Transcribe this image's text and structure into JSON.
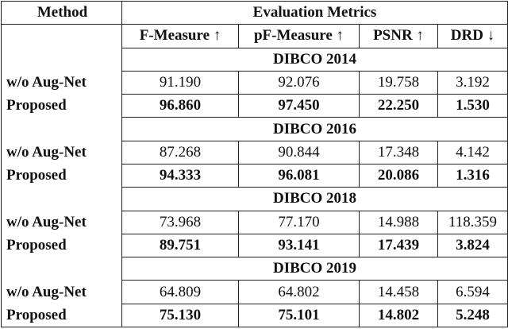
{
  "header": {
    "method": "Method",
    "metrics": "Evaluation Metrics"
  },
  "columns": [
    "F-Measure ↑",
    "pF-Measure ↑",
    "PSNR ↑",
    "DRD ↓"
  ],
  "sections": [
    {
      "title": "DIBCO 2014",
      "rows": [
        {
          "method": "w/o Aug-Net",
          "values": [
            "91.190",
            "92.076",
            "19.758",
            "3.192"
          ]
        },
        {
          "method": "Proposed",
          "values": [
            "96.860",
            "97.450",
            "22.250",
            "1.530"
          ]
        }
      ]
    },
    {
      "title": "DIBCO 2016",
      "rows": [
        {
          "method": "w/o Aug-Net",
          "values": [
            "87.268",
            "90.844",
            "17.348",
            "4.142"
          ]
        },
        {
          "method": "Proposed",
          "values": [
            "94.333",
            "96.081",
            "20.086",
            "1.316"
          ]
        }
      ]
    },
    {
      "title": "DIBCO 2018",
      "rows": [
        {
          "method": "w/o Aug-Net",
          "values": [
            "73.968",
            "77.170",
            "14.988",
            "118.359"
          ]
        },
        {
          "method": "Proposed",
          "values": [
            "89.751",
            "93.141",
            "17.439",
            "3.824"
          ]
        }
      ]
    },
    {
      "title": "DIBCO 2019",
      "rows": [
        {
          "method": "w/o Aug-Net",
          "values": [
            "64.809",
            "64.802",
            "14.458",
            "6.594"
          ]
        },
        {
          "method": "Proposed",
          "values": [
            "75.130",
            "75.101",
            "14.802",
            "5.248"
          ]
        }
      ]
    }
  ]
}
